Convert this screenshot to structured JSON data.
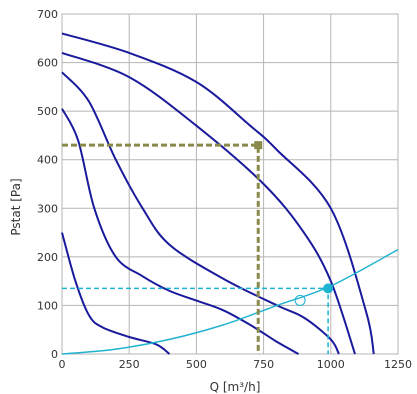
{
  "chart_data": {
    "type": "line",
    "title": "",
    "xlabel": "Q [m³/h]",
    "ylabel": "Pstat [Pa]",
    "xlim": [
      0,
      1250
    ],
    "ylim": [
      0,
      700
    ],
    "x_ticks": [
      "0",
      "250",
      "500",
      "750",
      "1000",
      "1250"
    ],
    "y_ticks": [
      "0",
      "100",
      "200",
      "300",
      "400",
      "500",
      "600",
      "700"
    ],
    "grid": true,
    "curve_color": "#1a1a9c",
    "system_color": "#1fb3d1",
    "marker_color": "#8a8a4a",
    "fan_curves": [
      {
        "x": [
          0,
          250,
          500,
          700,
          800,
          1000,
          1130,
          1160
        ],
        "y": [
          660,
          620,
          560,
          470,
          420,
          300,
          90,
          0
        ]
      },
      {
        "x": [
          0,
          250,
          500,
          750,
          900,
          1000,
          1090
        ],
        "y": [
          620,
          570,
          470,
          350,
          250,
          150,
          0
        ]
      },
      {
        "x": [
          0,
          100,
          200,
          300,
          400,
          600,
          800,
          900,
          1000,
          1030
        ],
        "y": [
          580,
          520,
          400,
          300,
          225,
          155,
          100,
          75,
          30,
          0
        ]
      },
      {
        "x": [
          0,
          60,
          120,
          200,
          300,
          400,
          500,
          600,
          700,
          800,
          880
        ],
        "y": [
          505,
          440,
          300,
          200,
          160,
          130,
          110,
          90,
          60,
          25,
          0
        ]
      },
      {
        "x": [
          0,
          50,
          100,
          150,
          250,
          350,
          400
        ],
        "y": [
          250,
          150,
          80,
          55,
          35,
          20,
          0
        ]
      }
    ],
    "system_curve": {
      "x": [
        0,
        200,
        400,
        600,
        800,
        1000,
        1250
      ],
      "y": [
        0,
        10,
        30,
        60,
        100,
        140,
        215
      ]
    },
    "operating_points": [
      {
        "x": 730,
        "y": 430,
        "style": "olive"
      },
      {
        "x": 990,
        "y": 135,
        "style": "cyan"
      }
    ]
  }
}
